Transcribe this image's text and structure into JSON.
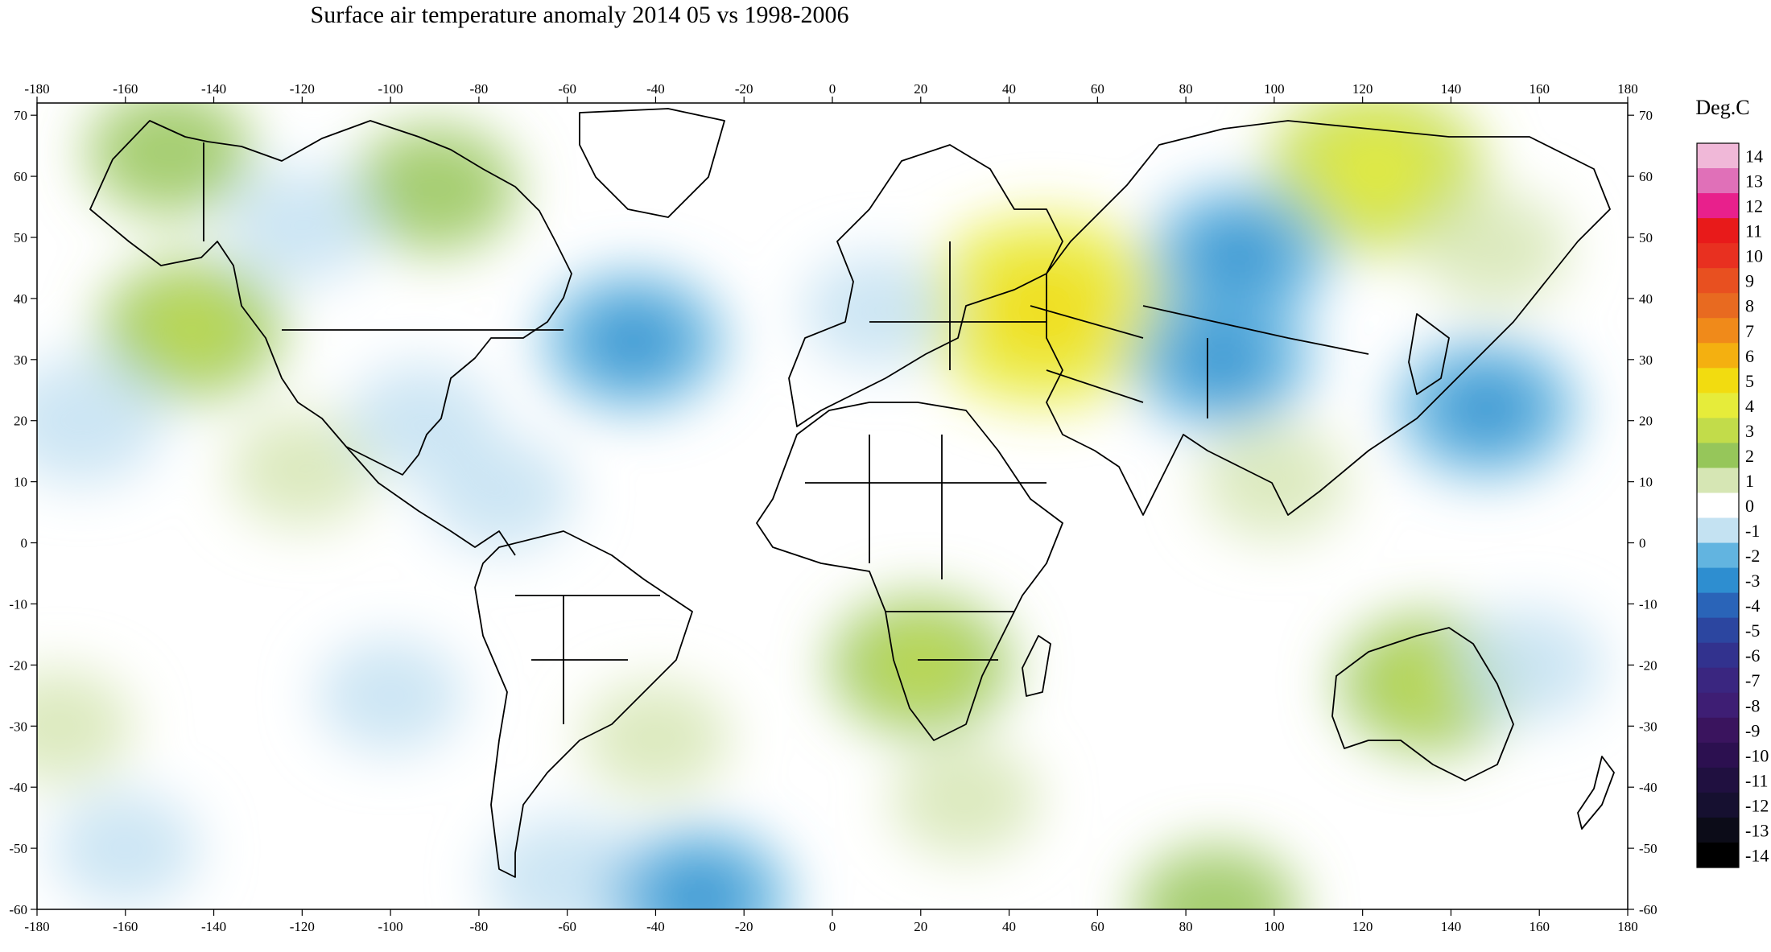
{
  "title": "Surface air temperature anomaly 2014 05 vs 1998-2006",
  "colorbar": {
    "unit": "Deg.C",
    "values": [
      14,
      13,
      12,
      11,
      10,
      9,
      8,
      7,
      6,
      5,
      4,
      3,
      2,
      1,
      0,
      -1,
      -2,
      -3,
      -4,
      -5,
      -6,
      -7,
      -8,
      -9,
      -10,
      -11,
      -12,
      -13,
      -14
    ],
    "colors": [
      "#f0b8d8",
      "#e070b8",
      "#e8208c",
      "#e81a1a",
      "#e83020",
      "#e85020",
      "#e86a20",
      "#f08a1a",
      "#f4b010",
      "#f2dc10",
      "#e6ec3a",
      "#c2dc4a",
      "#96c65a",
      "#d6e6b4",
      "#ffffff",
      "#c4e2f2",
      "#62b4e0",
      "#2e8ed0",
      "#2a64b8",
      "#2c46a0",
      "#32328e",
      "#3a2680",
      "#3e1e74",
      "#3a145e",
      "#2c1050",
      "#201040",
      "#161030",
      "#0c0c18",
      "#000000"
    ]
  },
  "chart_data": {
    "type": "heatmap",
    "title": "Surface air temperature anomaly 2014 05 vs 1998-2006",
    "xlabel": "",
    "ylabel": "",
    "xlim": [
      -180,
      180
    ],
    "ylim": [
      -60,
      72
    ],
    "xticks": [
      -180,
      -160,
      -140,
      -120,
      -100,
      -80,
      -60,
      -40,
      -20,
      0,
      20,
      40,
      60,
      80,
      100,
      120,
      140,
      160,
      180
    ],
    "yticks": [
      70,
      60,
      50,
      40,
      30,
      20,
      10,
      0,
      -10,
      -20,
      -30,
      -40,
      -50,
      -60
    ],
    "value_unit": "Deg.C",
    "value_range": [
      -14,
      14
    ],
    "background_anomaly": 0,
    "anomaly_regions": [
      {
        "lon": 48,
        "lat": 38,
        "value": 4
      },
      {
        "lon": 123,
        "lat": 61,
        "value": 3
      },
      {
        "lon": -145,
        "lat": 35,
        "value": 2
      },
      {
        "lon": -150,
        "lat": 64,
        "value": 1.5
      },
      {
        "lon": -90,
        "lat": 58,
        "value": 1.5
      },
      {
        "lon": 20,
        "lat": -20,
        "value": 2
      },
      {
        "lon": 135,
        "lat": -23,
        "value": 2
      },
      {
        "lon": 150,
        "lat": 48,
        "value": 1
      },
      {
        "lon": -120,
        "lat": 12,
        "value": 1
      },
      {
        "lon": -40,
        "lat": -32,
        "value": 1
      },
      {
        "lon": 30,
        "lat": -42,
        "value": 1
      },
      {
        "lon": -175,
        "lat": -30,
        "value": 1
      },
      {
        "lon": 87,
        "lat": -60,
        "value": 1.5
      },
      {
        "lon": 100,
        "lat": 10,
        "value": 1
      },
      {
        "lon": 92,
        "lat": 47,
        "value": -2
      },
      {
        "lon": 88,
        "lat": 30,
        "value": -2
      },
      {
        "lon": 148,
        "lat": 22,
        "value": -2
      },
      {
        "lon": -45,
        "lat": 33,
        "value": -2
      },
      {
        "lon": -170,
        "lat": 20,
        "value": -1.5
      },
      {
        "lon": 10,
        "lat": 38,
        "value": -1
      },
      {
        "lon": -75,
        "lat": 8,
        "value": -1
      },
      {
        "lon": -93,
        "lat": 20,
        "value": -1
      },
      {
        "lon": -100,
        "lat": -25,
        "value": -1
      },
      {
        "lon": -60,
        "lat": -55,
        "value": -1.5
      },
      {
        "lon": -30,
        "lat": -58,
        "value": -2
      },
      {
        "lon": -120,
        "lat": 52,
        "value": -1
      },
      {
        "lon": 158,
        "lat": -20,
        "value": -1
      },
      {
        "lon": -160,
        "lat": -50,
        "value": -1
      }
    ],
    "coastline_overlay": true,
    "country_borders_overlay": true
  }
}
